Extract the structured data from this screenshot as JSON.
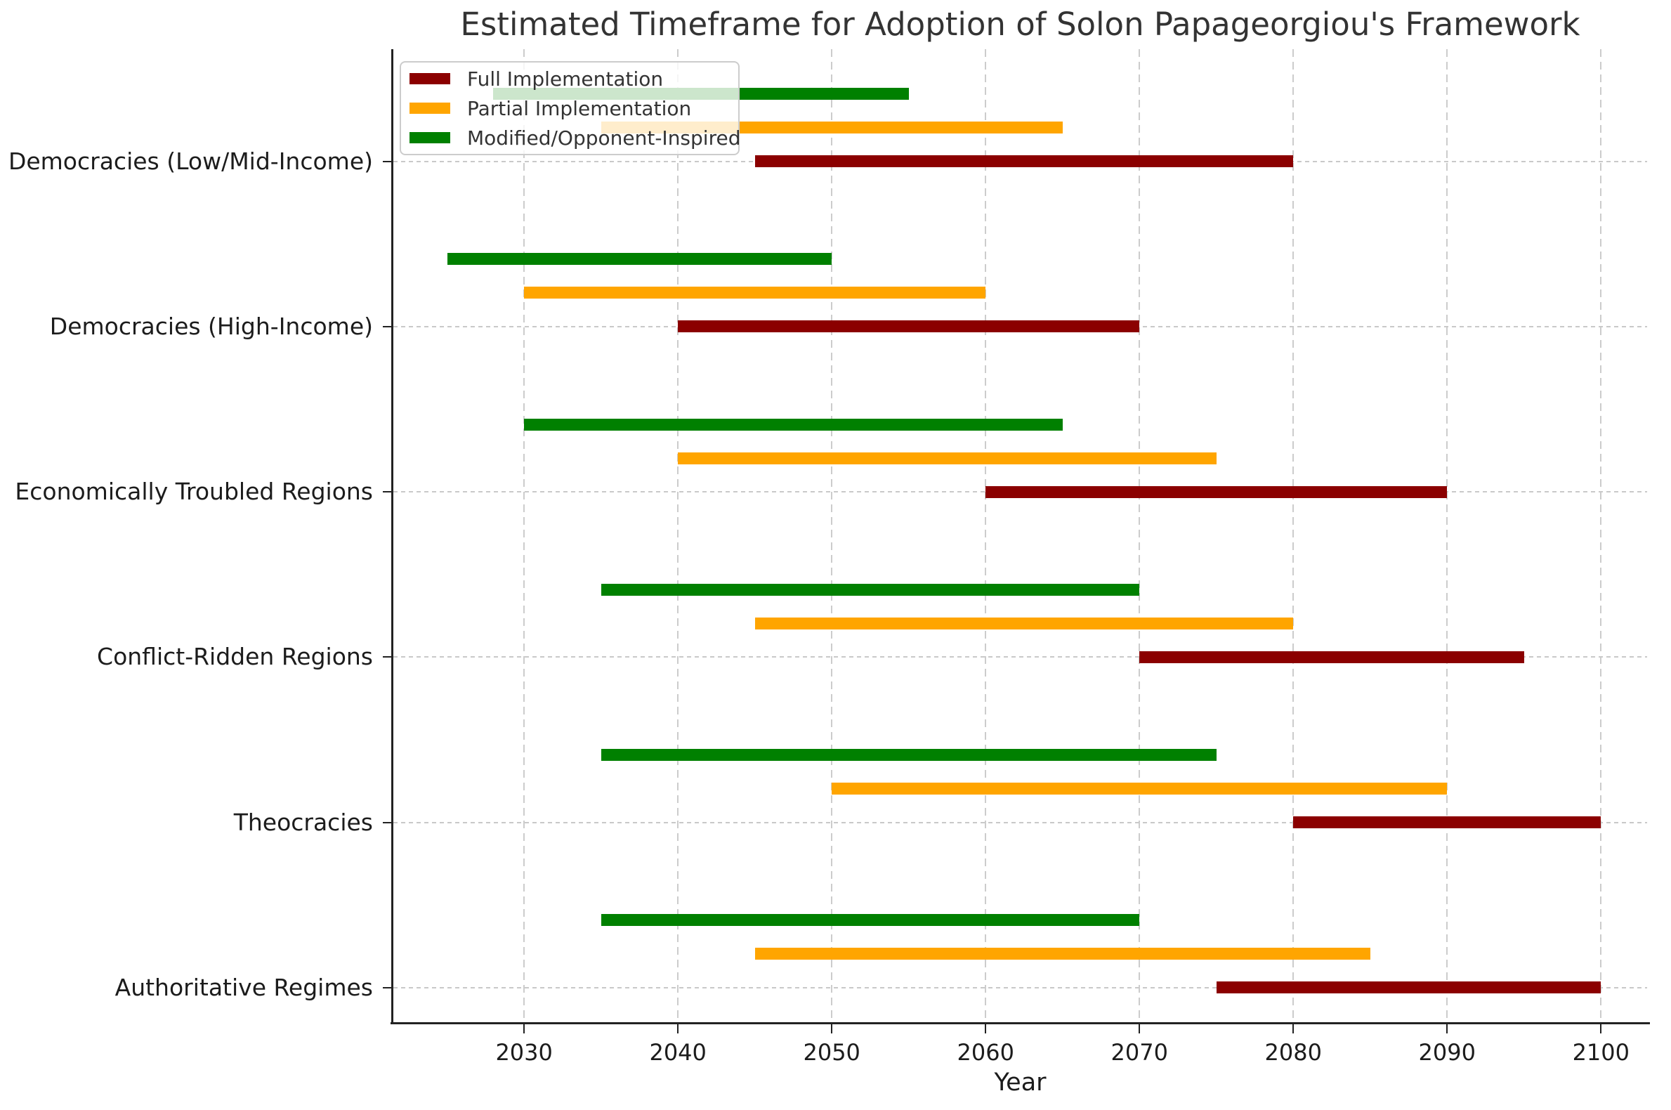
{
  "title": "Estimated Timeframe for Adoption of Solon Papageorgiou's Framework",
  "colors": {
    "full_implementation": "#8B0000",
    "partial_implementation": "#FFA500",
    "modified_opponent_inspired": "#008000",
    "grid": "#CCCCCC",
    "axis": "#222222",
    "text": "#1C1C1C"
  },
  "legend": {
    "items": [
      {
        "label": "Full Implementation",
        "color": "#8B0000"
      },
      {
        "label": "Partial Implementation",
        "color": "#FFA500"
      },
      {
        "label": "Modified/Opponent-Inspired",
        "color": "#008000"
      }
    ]
  },
  "chart_data": {
    "type": "bar",
    "subtype": "gantt-range",
    "orientation": "horizontal",
    "title": "Estimated Timeframe for Adoption of Solon Papageorgiou's Framework",
    "xlabel": "Year",
    "ylabel": "",
    "xlim": [
      2021.5,
      2103
    ],
    "x_ticks": [
      2030,
      2040,
      2050,
      2060,
      2070,
      2080,
      2090,
      2100
    ],
    "grid": {
      "vertical": "dashed",
      "horizontal": "dashed-fine"
    },
    "legend_position": "upper left",
    "categories": [
      "Democracies (Low/Mid-Income)",
      "Democracies (High-Income)",
      "Economically Troubled Regions",
      "Conflict-Ridden Regions",
      "Theocracies",
      "Authoritative Regimes"
    ],
    "series": [
      {
        "name": "Full Implementation",
        "color": "#8B0000",
        "ranges": [
          [
            2045,
            2080
          ],
          [
            2040,
            2070
          ],
          [
            2060,
            2090
          ],
          [
            2070,
            2095
          ],
          [
            2080,
            2100
          ],
          [
            2075,
            2100
          ]
        ]
      },
      {
        "name": "Partial Implementation",
        "color": "#FFA500",
        "ranges": [
          [
            2035,
            2065
          ],
          [
            2030,
            2060
          ],
          [
            2040,
            2075
          ],
          [
            2045,
            2080
          ],
          [
            2050,
            2090
          ],
          [
            2045,
            2085
          ]
        ]
      },
      {
        "name": "Modified/Opponent-Inspired",
        "color": "#008000",
        "ranges": [
          [
            2028,
            2055
          ],
          [
            2025,
            2050
          ],
          [
            2030,
            2065
          ],
          [
            2035,
            2070
          ],
          [
            2035,
            2075
          ],
          [
            2035,
            2070
          ]
        ]
      }
    ]
  }
}
